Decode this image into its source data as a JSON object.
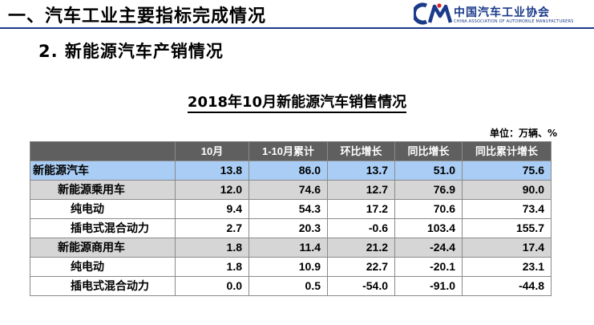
{
  "header": {
    "title": "一、汽车工业主要指标完成情况"
  },
  "logo": {
    "name_cn": "中国汽车工业协会",
    "name_en": "CHINA ASSOCIATION OF AUTOMOBILE MANUFACTURERS",
    "brand_color": "#1a3a8a",
    "accent_color": "#d8242a"
  },
  "section": {
    "title": "2. 新能源汽车产销情况"
  },
  "table": {
    "title": "2018年10月新能源汽车销售情况",
    "unit": "单位：万辆、%",
    "columns": [
      "",
      "10月",
      "1-10月累计",
      "环比增长",
      "同比增长",
      "同比累计增长"
    ],
    "rows": [
      {
        "label": "新能源汽车",
        "level": 0,
        "values": [
          "13.8",
          "86.0",
          "13.7",
          "51.0",
          "75.6"
        ]
      },
      {
        "label": "新能源乘用车",
        "level": 1,
        "values": [
          "12.0",
          "74.6",
          "12.7",
          "76.9",
          "90.0"
        ]
      },
      {
        "label": "纯电动",
        "level": 2,
        "values": [
          "9.4",
          "54.3",
          "17.2",
          "70.6",
          "73.4"
        ]
      },
      {
        "label": "插电式混合动力",
        "level": 2,
        "values": [
          "2.7",
          "20.3",
          "-0.6",
          "103.4",
          "155.7"
        ]
      },
      {
        "label": "新能源商用车",
        "level": 1,
        "values": [
          "1.8",
          "11.4",
          "21.2",
          "-24.4",
          "17.4"
        ]
      },
      {
        "label": "纯电动",
        "level": 2,
        "values": [
          "1.8",
          "10.9",
          "22.7",
          "-20.1",
          "23.1"
        ]
      },
      {
        "label": "插电式混合动力",
        "level": 2,
        "values": [
          "0.0",
          "0.5",
          "-54.0",
          "-91.0",
          "-44.8"
        ]
      }
    ]
  }
}
